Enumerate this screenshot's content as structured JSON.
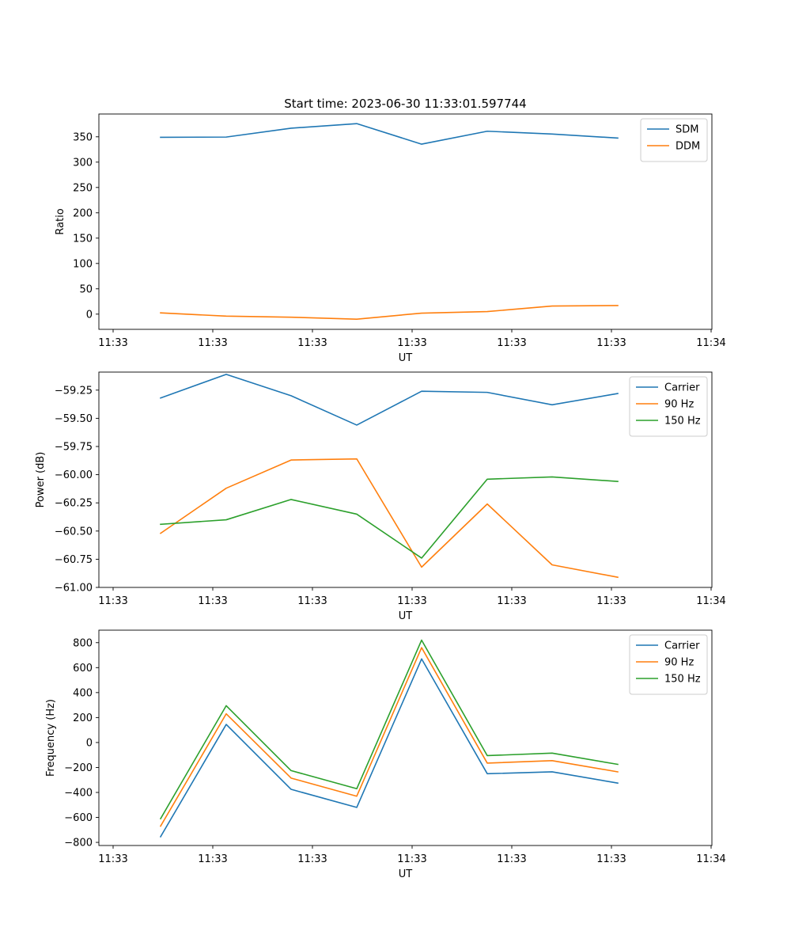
{
  "chart_data": [
    {
      "type": "line",
      "title": "Start time: 2023-06-30 11:33:01.597744",
      "xlabel": "UT",
      "ylabel": "Ratio",
      "x_tick_labels": [
        "11:33",
        "11:33",
        "11:33",
        "11:33",
        "11:33",
        "11:33",
        "11:34"
      ],
      "y_ticks": [
        0,
        50,
        100,
        150,
        200,
        250,
        300,
        350
      ],
      "ylim": [
        -30,
        395
      ],
      "grid": false,
      "legend_position": "top-right",
      "series": [
        {
          "name": "SDM",
          "color": "#1f77b4",
          "values": [
            349,
            349.5,
            367,
            376,
            335.5,
            361,
            355.5,
            347.5
          ]
        },
        {
          "name": "DDM",
          "color": "#ff7f0e",
          "values": [
            2.5,
            -4,
            -6,
            -10,
            2,
            5,
            16,
            17
          ]
        }
      ]
    },
    {
      "type": "line",
      "title": "",
      "xlabel": "UT",
      "ylabel": "Power (dB)",
      "x_tick_labels": [
        "11:33",
        "11:33",
        "11:33",
        "11:33",
        "11:33",
        "11:33",
        "11:34"
      ],
      "y_ticks": [
        -61.0,
        -60.75,
        -60.5,
        -60.25,
        -60.0,
        -59.75,
        -59.5,
        -59.25
      ],
      "y_tick_labels": [
        "−61.00",
        "−60.75",
        "−60.50",
        "−60.25",
        "−60.00",
        "−59.75",
        "−59.50",
        "−59.25"
      ],
      "ylim": [
        -61.0,
        -59.09
      ],
      "grid": false,
      "legend_position": "top-right",
      "series": [
        {
          "name": "Carrier",
          "color": "#1f77b4",
          "values": [
            -59.32,
            -59.11,
            -59.3,
            -59.56,
            -59.26,
            -59.27,
            -59.38,
            -59.28
          ]
        },
        {
          "name": "90 Hz",
          "color": "#ff7f0e",
          "values": [
            -60.52,
            -60.12,
            -59.87,
            -59.86,
            -60.82,
            -60.26,
            -60.8,
            -60.91
          ]
        },
        {
          "name": "150 Hz",
          "color": "#2ca02c",
          "values": [
            -60.44,
            -60.4,
            -60.22,
            -60.35,
            -60.74,
            -60.04,
            -60.02,
            -60.06
          ]
        }
      ]
    },
    {
      "type": "line",
      "title": "",
      "xlabel": "UT",
      "ylabel": "Frequency (Hz)",
      "x_tick_labels": [
        "11:33",
        "11:33",
        "11:33",
        "11:33",
        "11:33",
        "11:33",
        "11:34"
      ],
      "y_ticks": [
        -800,
        -600,
        -400,
        -200,
        0,
        200,
        400,
        600,
        800
      ],
      "y_tick_labels": [
        "−800",
        "−600",
        "−400",
        "−200",
        "0",
        "200",
        "400",
        "600",
        "800"
      ],
      "ylim": [
        -825,
        900
      ],
      "grid": false,
      "legend_position": "top-right",
      "series": [
        {
          "name": "Carrier",
          "color": "#1f77b4",
          "values": [
            -755,
            145,
            -375,
            -520,
            670,
            -250,
            -235,
            -325
          ]
        },
        {
          "name": "90 Hz",
          "color": "#ff7f0e",
          "values": [
            -670,
            230,
            -285,
            -430,
            760,
            -165,
            -145,
            -235
          ]
        },
        {
          "name": "150 Hz",
          "color": "#2ca02c",
          "values": [
            -610,
            295,
            -225,
            -370,
            820,
            -105,
            -85,
            -175
          ]
        }
      ]
    }
  ]
}
